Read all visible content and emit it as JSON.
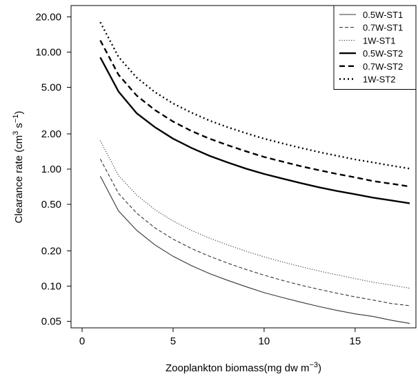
{
  "chart_data": {
    "type": "line",
    "title": "",
    "xlabel_prefix": "Zooplankton biomass(mg  dw  m",
    "xlabel_sup": "−3",
    "xlabel_suffix": ")",
    "ylabel_prefix": "Clearance rate (cm",
    "ylabel_sup1": "3",
    "ylabel_mid": " s",
    "ylabel_sup2": "−1",
    "ylabel_suffix": ")",
    "xlim": [
      0,
      18
    ],
    "ylim": [
      0.044,
      25
    ],
    "y_scale": "log",
    "x_ticks": [
      0,
      5,
      10,
      15
    ],
    "y_ticks": [
      0.05,
      0.1,
      0.2,
      0.5,
      1,
      2,
      5,
      10,
      20
    ],
    "y_tick_labels": [
      "0.05",
      "0.10",
      "0.20",
      "0.50",
      "1.00",
      "2.00",
      "5.00",
      "10.00",
      "20.00"
    ],
    "legend_position": "top-right",
    "grid": false,
    "x": [
      1,
      2,
      3,
      4,
      5,
      6,
      7,
      8,
      9,
      10,
      11,
      12,
      13,
      14,
      15,
      16,
      17,
      18
    ],
    "series": [
      {
        "name": "0.5W-ST1",
        "style": "solid-thin",
        "values": [
          0.87,
          0.44,
          0.3,
          0.225,
          0.18,
          0.15,
          0.128,
          0.112,
          0.099,
          0.088,
          0.08,
          0.073,
          0.067,
          0.062,
          0.058,
          0.055,
          0.051,
          0.048
        ]
      },
      {
        "name": "0.7W-ST1",
        "style": "dashed-thin",
        "values": [
          1.22,
          0.62,
          0.42,
          0.315,
          0.252,
          0.21,
          0.18,
          0.157,
          0.139,
          0.124,
          0.112,
          0.102,
          0.094,
          0.087,
          0.081,
          0.076,
          0.071,
          0.068
        ]
      },
      {
        "name": "1W-ST1",
        "style": "dotted-thin",
        "values": [
          1.75,
          0.88,
          0.6,
          0.45,
          0.36,
          0.3,
          0.257,
          0.225,
          0.199,
          0.178,
          0.161,
          0.147,
          0.135,
          0.125,
          0.116,
          0.108,
          0.102,
          0.096
        ]
      },
      {
        "name": "0.5W-ST2",
        "style": "solid-thick",
        "values": [
          9.0,
          4.6,
          3.0,
          2.28,
          1.82,
          1.52,
          1.3,
          1.14,
          1.01,
          0.91,
          0.83,
          0.76,
          0.7,
          0.65,
          0.61,
          0.57,
          0.54,
          0.51
        ]
      },
      {
        "name": "0.7W-ST2",
        "style": "dashed-thick",
        "values": [
          12.6,
          6.4,
          4.25,
          3.2,
          2.55,
          2.12,
          1.82,
          1.6,
          1.42,
          1.27,
          1.16,
          1.06,
          0.98,
          0.91,
          0.85,
          0.79,
          0.75,
          0.71
        ]
      },
      {
        "name": "1W-ST2",
        "style": "dotted-thick",
        "values": [
          18.0,
          9.1,
          6.05,
          4.55,
          3.64,
          3.04,
          2.6,
          2.28,
          2.03,
          1.82,
          1.66,
          1.52,
          1.4,
          1.3,
          1.21,
          1.14,
          1.07,
          1.01
        ]
      }
    ]
  }
}
